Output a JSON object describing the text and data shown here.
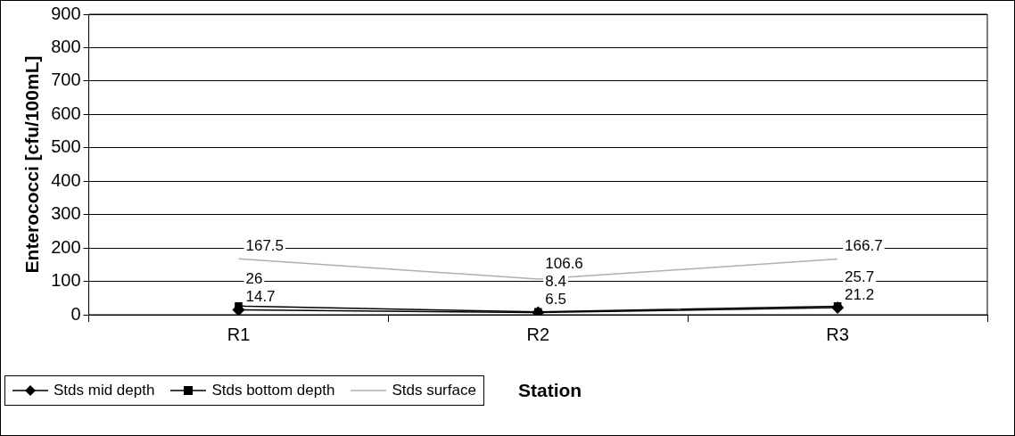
{
  "chart_data": {
    "type": "line",
    "xlabel": "Station",
    "ylabel": "Enterococci [cfu/100mL]",
    "categories": [
      "R1",
      "R2",
      "R3"
    ],
    "series": [
      {
        "name": "Stds mid depth",
        "color": "#000000",
        "marker": "diamond",
        "values": [
          14.7,
          6.5,
          21.2
        ]
      },
      {
        "name": "Stds bottom depth",
        "color": "#000000",
        "marker": "square",
        "values": [
          26,
          8.4,
          25.7
        ]
      },
      {
        "name": "Stds surface",
        "color": "#b0b0b0",
        "marker": "none",
        "values": [
          167.5,
          106.6,
          166.7
        ]
      }
    ],
    "ylim": [
      0,
      900
    ],
    "yticks": [
      0,
      100,
      200,
      300,
      400,
      500,
      600,
      700,
      800,
      900
    ],
    "grid": "y",
    "legend": "bottom left",
    "data_labels": true
  }
}
